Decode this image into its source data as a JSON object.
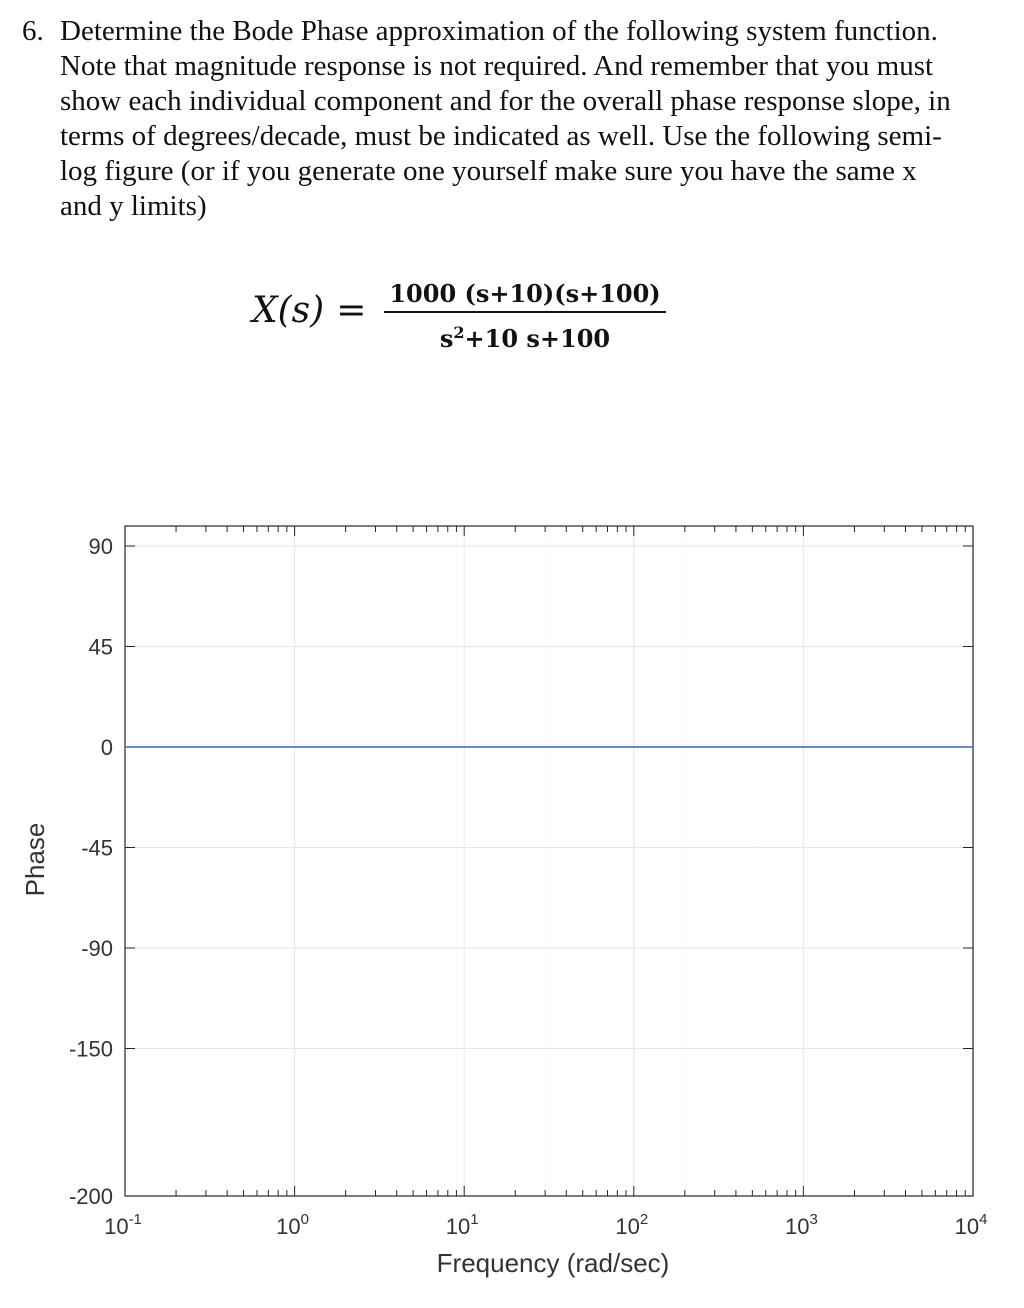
{
  "problem": {
    "number": "6.",
    "lines": [
      "Determine the Bode Phase approximation of the following system function.",
      "Note that magnitude response is not required. And remember that you must",
      "show each individual component and for the overall phase response slope, in",
      "terms of degrees/decade, must be indicated as well.  Use the following semi-",
      "log figure (or if you generate one yourself make sure you have the same x",
      "and y limits)"
    ]
  },
  "equation": {
    "lhs": "X(s)",
    "equals": "=",
    "numerator": "1000 (s+10)(s+100)",
    "denominator_base": "s",
    "denominator_exp": "2",
    "denominator_rest": "+10 s+100"
  },
  "chart_data": {
    "type": "line",
    "xscale": "log",
    "xlim": [
      0.1,
      10000
    ],
    "ylim": [
      -200,
      100
    ],
    "grid": true,
    "xlabel": "Frequency (rad/sec)",
    "ylabel": "Phase",
    "yticks": [
      90,
      45,
      0,
      -45,
      -90,
      -150,
      -200
    ],
    "ytick_labels": [
      "90",
      "45",
      "0",
      "-45",
      "-90",
      "-150",
      "-200"
    ],
    "xticks": [
      0.1,
      1,
      10,
      100,
      1000,
      10000
    ],
    "xtick_bases": [
      "10",
      "10",
      "10",
      "10",
      "10",
      "10"
    ],
    "xtick_exps": [
      "-1",
      "0",
      "1",
      "2",
      "3",
      "4"
    ],
    "series": [
      {
        "x": [
          0.1,
          10000
        ],
        "y": [
          0,
          0
        ],
        "color": "#2f6db5"
      }
    ],
    "colors": {
      "line": "#2f6db5",
      "axis": "#262626",
      "grid": "#e6e6e6",
      "minor_grid": "#efefef"
    }
  }
}
